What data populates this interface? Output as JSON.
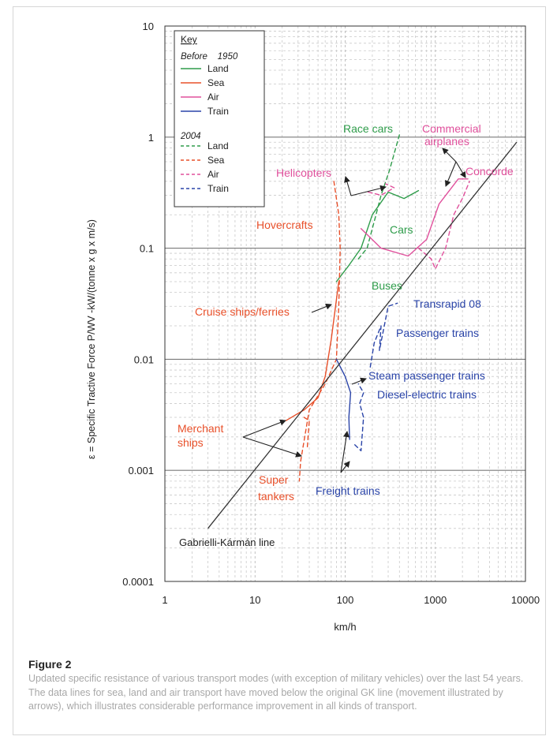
{
  "chart_data": {
    "type": "line",
    "x_scale": "log",
    "y_scale": "log",
    "xlim": [
      1,
      10000
    ],
    "ylim": [
      0.0001,
      10
    ],
    "x_ticks": [
      "1",
      "10",
      "100",
      "1000",
      "10000"
    ],
    "y_ticks": [
      "0.0001",
      "0.001",
      "0.01",
      "0.1",
      "1",
      "10"
    ],
    "xlabel": "km/h",
    "ylabel": "ε = Specific Tractive Force P/WV -kW/(tonne x g x m/s)",
    "grid": true,
    "legend": {
      "title": "Key",
      "group1_title": "Before    1950",
      "group2_title": "2004",
      "entries": [
        {
          "label": "Land",
          "group": "before",
          "color": "#2e9c4a",
          "style": "solid"
        },
        {
          "label": "Sea",
          "group": "before",
          "color": "#e8502a",
          "style": "solid"
        },
        {
          "label": "Air",
          "group": "before",
          "color": "#e0509c",
          "style": "solid"
        },
        {
          "label": "Train",
          "group": "before",
          "color": "#2a44a8",
          "style": "solid"
        },
        {
          "label": "Land",
          "group": "2004",
          "color": "#2e9c4a",
          "style": "dashed"
        },
        {
          "label": "Sea",
          "group": "2004",
          "color": "#e8502a",
          "style": "dashed"
        },
        {
          "label": "Air",
          "group": "2004",
          "color": "#e0509c",
          "style": "dashed"
        },
        {
          "label": "Train",
          "group": "2004",
          "color": "#2a44a8",
          "style": "dashed"
        }
      ]
    },
    "series": [
      {
        "category": "Land",
        "period": "before",
        "color": "#2e9c4a",
        "dashed": false,
        "points": [
          [
            80,
            0.05
          ],
          [
            110,
            0.07
          ],
          [
            150,
            0.1
          ],
          [
            200,
            0.2
          ],
          [
            300,
            0.32
          ],
          [
            450,
            0.28
          ],
          [
            650,
            0.33
          ]
        ]
      },
      {
        "category": "Land",
        "period": "2004",
        "color": "#2e9c4a",
        "dashed": true,
        "points": [
          [
            140,
            0.08
          ],
          [
            175,
            0.1
          ],
          [
            220,
            0.2
          ],
          [
            250,
            0.3
          ],
          [
            310,
            0.5
          ],
          [
            400,
            1.05
          ]
        ]
      },
      {
        "category": "Sea",
        "period": "before",
        "color": "#e8502a",
        "dashed": false,
        "points": [
          [
            22,
            0.0028
          ],
          [
            35,
            0.0035
          ],
          [
            50,
            0.0045
          ],
          [
            60,
            0.007
          ],
          [
            70,
            0.015
          ],
          [
            85,
            0.05
          ]
        ]
      },
      {
        "category": "Sea",
        "period": "2004",
        "color": "#e8502a",
        "dashed": true,
        "points": [
          [
            75,
            0.4
          ],
          [
            85,
            0.2
          ],
          [
            88,
            0.1
          ],
          [
            85,
            0.03
          ],
          [
            80,
            0.01
          ],
          [
            60,
            0.006
          ],
          [
            40,
            0.0035
          ],
          [
            32,
            0.0012
          ],
          [
            31,
            0.0008
          ]
        ]
      },
      {
        "category": "Sea",
        "period": "2004",
        "color": "#e8502a",
        "dashed": true,
        "points": [
          [
            35,
            0.003
          ],
          [
            40,
            0.0028
          ],
          [
            38,
            0.0016
          ]
        ]
      },
      {
        "category": "Air",
        "period": "before",
        "color": "#e0509c",
        "dashed": false,
        "points": [
          [
            150,
            0.15
          ],
          [
            250,
            0.1
          ],
          [
            500,
            0.085
          ],
          [
            800,
            0.12
          ],
          [
            1100,
            0.25
          ],
          [
            1800,
            0.42
          ],
          [
            2300,
            0.42
          ]
        ]
      },
      {
        "category": "Air",
        "period": "2004",
        "color": "#e0509c",
        "dashed": true,
        "points": [
          [
            180,
            0.32
          ],
          [
            250,
            0.3
          ],
          [
            350,
            0.35
          ],
          [
            280,
            0.38
          ]
        ]
      },
      {
        "category": "Air",
        "period": "2004",
        "color": "#e0509c",
        "dashed": true,
        "points": [
          [
            650,
            0.1
          ],
          [
            900,
            0.08
          ],
          [
            1000,
            0.065
          ],
          [
            1300,
            0.1
          ],
          [
            1600,
            0.2
          ],
          [
            2000,
            0.28
          ],
          [
            2400,
            0.4
          ]
        ]
      },
      {
        "category": "Train",
        "period": "before",
        "color": "#2a44a8",
        "dashed": false,
        "points": [
          [
            80,
            0.01
          ],
          [
            100,
            0.007
          ],
          [
            115,
            0.005
          ],
          [
            110,
            0.003
          ],
          [
            112,
            0.0019
          ]
        ]
      },
      {
        "category": "Train",
        "period": "2004",
        "color": "#2a44a8",
        "dashed": true,
        "points": [
          [
            128,
            0.0017
          ],
          [
            150,
            0.0015
          ],
          [
            160,
            0.003
          ],
          [
            145,
            0.004
          ],
          [
            160,
            0.005
          ],
          [
            140,
            0.006
          ]
        ]
      },
      {
        "category": "Train",
        "period": "2004",
        "color": "#2a44a8",
        "dashed": true,
        "points": [
          [
            190,
            0.0085
          ],
          [
            210,
            0.014
          ],
          [
            250,
            0.02
          ],
          [
            240,
            0.012
          ],
          [
            300,
            0.03
          ],
          [
            380,
            0.032
          ]
        ]
      }
    ],
    "reference_line": {
      "label": "Gabrielli-Kármán line",
      "points": [
        [
          3,
          0.0003
        ],
        [
          8000,
          0.9
        ]
      ],
      "color": "#333333"
    },
    "annotations": [
      {
        "text": "Race cars",
        "color": "#2e9c4a"
      },
      {
        "text": "Commercial",
        "color": "#e0509c"
      },
      {
        "text": "airplanes",
        "color": "#e0509c"
      },
      {
        "text": "Concorde",
        "color": "#e0509c"
      },
      {
        "text": "Helicopters",
        "color": "#e0509c"
      },
      {
        "text": "Hovercrafts",
        "color": "#e8502a"
      },
      {
        "text": "Cars",
        "color": "#2e9c4a"
      },
      {
        "text": "Buses",
        "color": "#2e9c4a"
      },
      {
        "text": "Cruise ships/ferries",
        "color": "#e8502a"
      },
      {
        "text": "Transrapid 08",
        "color": "#2a44a8"
      },
      {
        "text": "Passenger trains",
        "color": "#2a44a8"
      },
      {
        "text": "Steam passenger trains",
        "color": "#2a44a8"
      },
      {
        "text": "Diesel-electric trains",
        "color": "#2a44a8"
      },
      {
        "text": "Merchant",
        "color": "#e8502a"
      },
      {
        "text": "ships",
        "color": "#e8502a"
      },
      {
        "text": "Super",
        "color": "#e8502a"
      },
      {
        "text": "tankers",
        "color": "#e8502a"
      },
      {
        "text": "Freight trains",
        "color": "#2a44a8"
      }
    ]
  },
  "figure": {
    "title": "Figure 2",
    "caption": "Updated specific resistance of various transport modes (with exception of military vehicles) over the last 54 years. The data lines for sea, land and air transport have moved below the original GK line (movement illustrated by arrows), which illustrates considerable performance improvement in all kinds of transport."
  }
}
